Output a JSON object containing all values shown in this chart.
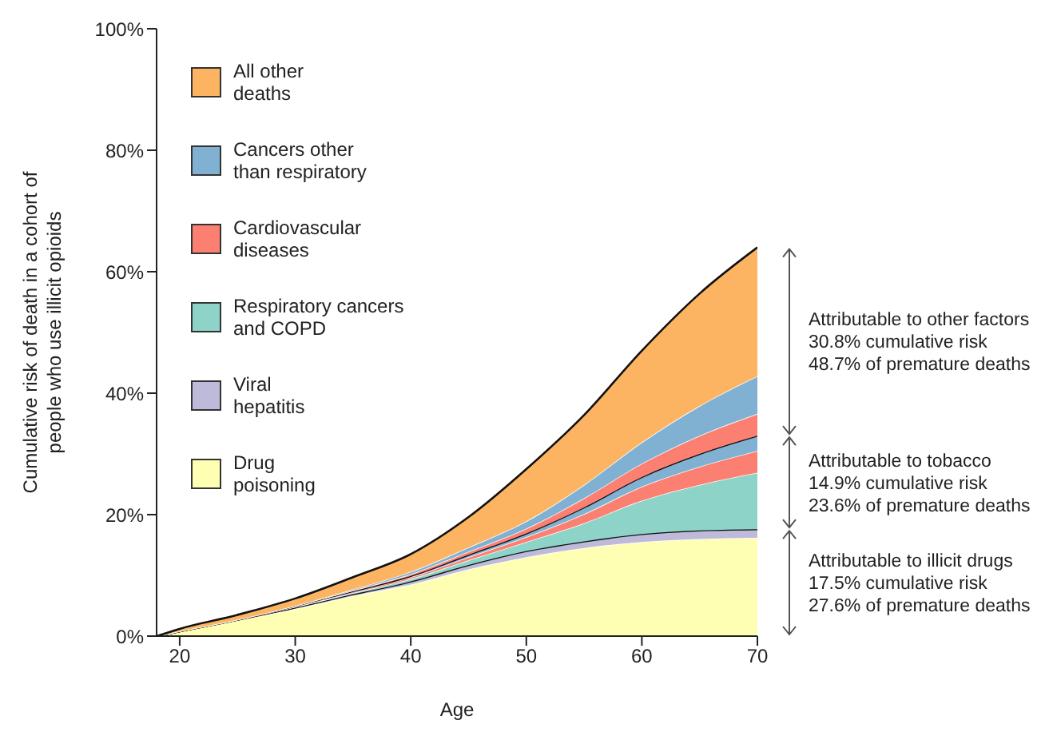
{
  "chart_data": {
    "type": "area",
    "stacked": true,
    "xlabel": "Age",
    "ylabel": "Cumulative risk of death in a cohort of\npeople who use illicit opioids",
    "x": [
      18,
      20,
      25,
      30,
      35,
      40,
      45,
      50,
      55,
      60,
      65,
      70
    ],
    "xlim": [
      18,
      70
    ],
    "xticks": [
      20,
      30,
      40,
      50,
      60,
      70
    ],
    "ylim": [
      0,
      100
    ],
    "yticks": [
      {
        "value": 0,
        "label": "0%"
      },
      {
        "value": 20,
        "label": "20%"
      },
      {
        "value": 40,
        "label": "40%"
      },
      {
        "value": 60,
        "label": "60%"
      },
      {
        "value": 80,
        "label": "80%"
      },
      {
        "value": 100,
        "label": "100%"
      }
    ],
    "grid": false,
    "legend": "top left",
    "series": [
      {
        "name": "Drug\npoisoning",
        "color": "#ffffb3",
        "values": [
          0,
          0.8,
          2.6,
          4.5,
          6.6,
          8.5,
          11,
          13,
          14.5,
          15.5,
          16,
          16.2
        ]
      },
      {
        "name": "Viral\nhepatitis",
        "color": "#bebada",
        "line_style": "solid",
        "values": [
          0,
          0,
          0.1,
          0.2,
          0.3,
          0.5,
          0.7,
          1,
          1.1,
          1.3,
          1.4,
          1.4
        ]
      },
      {
        "name": "Respiratory cancers\nand COPD",
        "color": "#8dd3c7",
        "values": [
          0,
          0,
          0,
          0.1,
          0.2,
          0.4,
          0.8,
          1.5,
          3,
          5.5,
          7.5,
          9.3
        ]
      },
      {
        "color": "#fb8072",
        "values": [
          0,
          0,
          0,
          0.1,
          0.2,
          0.3,
          0.5,
          0.8,
          1.5,
          2.3,
          3,
          3.6
        ]
      },
      {
        "color": "#80b1d3",
        "line_style": "solid",
        "values": [
          0,
          0,
          0,
          0.1,
          0.1,
          0.2,
          0.4,
          0.6,
          1.1,
          1.6,
          2.1,
          2.5
        ]
      },
      {
        "name": "Cardiovascular\ndiseases",
        "color": "#fb8072",
        "values": [
          0,
          0,
          0,
          0,
          0.1,
          0.3,
          0.5,
          0.8,
          1.5,
          2.2,
          3,
          3.6
        ]
      },
      {
        "name": "Cancers other\nthan respiratory",
        "color": "#80b1d3",
        "values": [
          0,
          0,
          0,
          0,
          0.2,
          0.4,
          0.7,
          1.2,
          2.2,
          3.5,
          4.9,
          6.2
        ]
      },
      {
        "name": "All other\ndeaths",
        "color": "#fdb462",
        "line_style": "solid",
        "values": [
          0,
          0.4,
          0.8,
          1.2,
          2,
          2.9,
          5,
          8.6,
          11.5,
          15.1,
          18.5,
          21.2
        ]
      }
    ],
    "annotations": [
      "Attributable to other factors\n30.8% cumulative risk\n48.7% of premature deaths",
      "Attributable to tobacco\n14.9% cumulative risk\n23.6% of premature deaths",
      "Attributable to illicit drugs\n17.5% cumulative risk\n27.6% of premature deaths"
    ]
  }
}
